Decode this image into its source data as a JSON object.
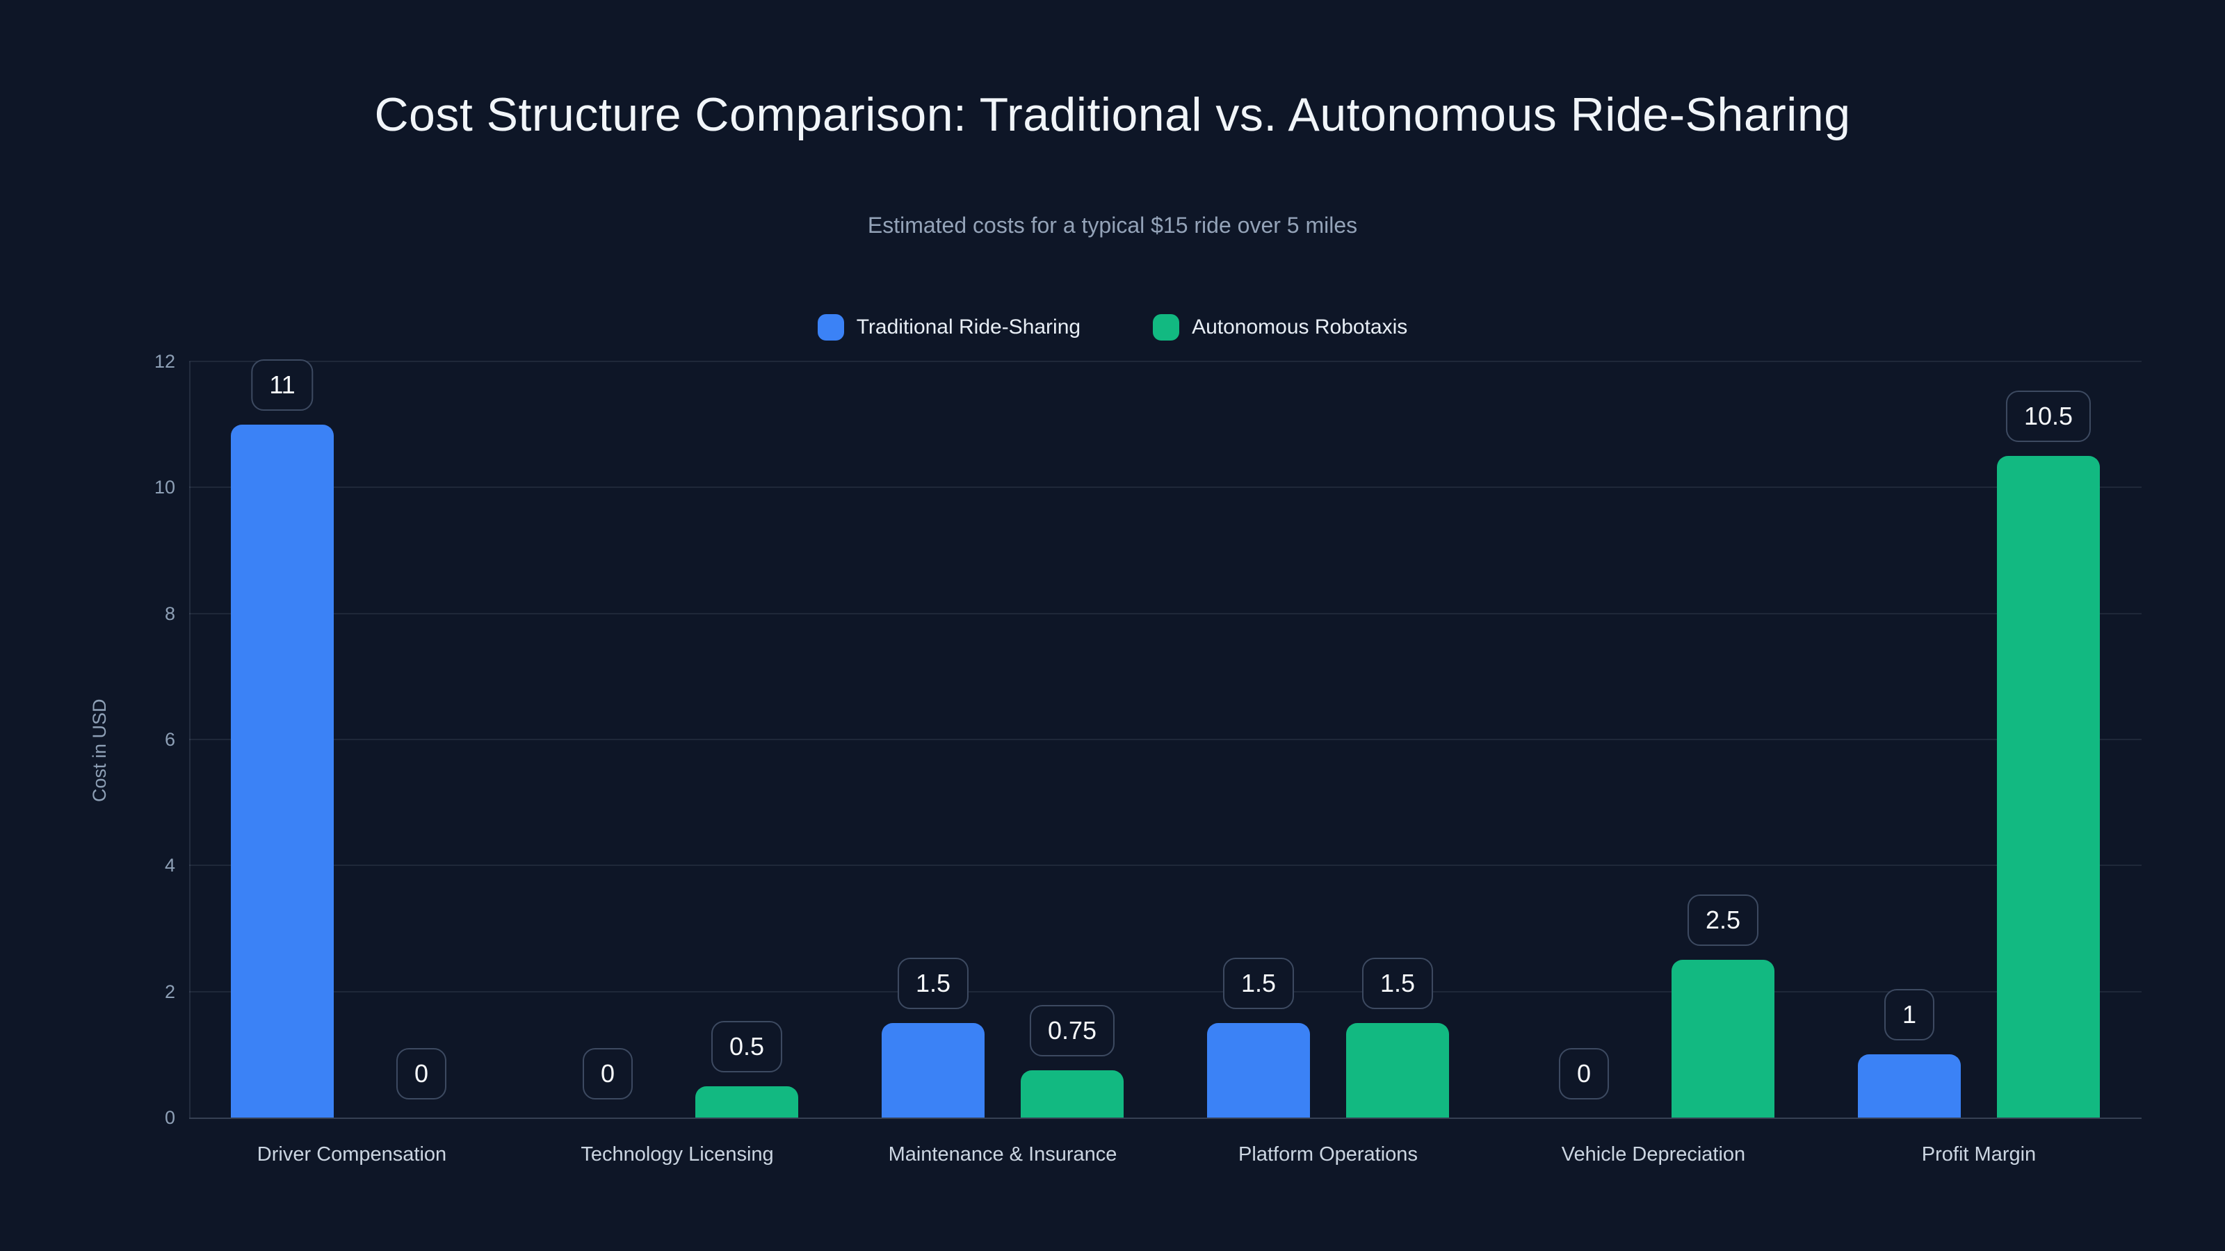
{
  "chart_data": {
    "type": "bar",
    "title": "Cost Structure Comparison: Traditional vs. Autonomous Ride-Sharing",
    "subtitle": "Estimated costs for a typical $15 ride over 5 miles",
    "categories": [
      "Driver Compensation",
      "Technology Licensing",
      "Maintenance & Insurance",
      "Platform Operations",
      "Vehicle Depreciation",
      "Profit Margin"
    ],
    "series": [
      {
        "name": "Traditional Ride-Sharing",
        "color": "#3b82f6",
        "values": [
          11,
          0,
          1.5,
          1.5,
          0,
          1
        ]
      },
      {
        "name": "Autonomous Robotaxis",
        "color": "#12b981",
        "values": [
          0,
          0.5,
          0.75,
          1.5,
          2.5,
          10.5
        ]
      }
    ],
    "xlabel": "",
    "ylabel": "Cost in USD",
    "yticks": [
      0,
      2,
      4,
      6,
      8,
      10,
      12
    ],
    "ylim": [
      0,
      12
    ],
    "grid": true,
    "legend_position": "top",
    "value_labels_shown": true
  },
  "theme": {
    "bg": "#0e1627",
    "title-color": "#f1f5f9",
    "subtitle-color": "#94a3b8",
    "axis-color": "#8ea0b6",
    "category-color": "#cbd5e1",
    "legend-text": "#e8eef5",
    "grid-color": "rgba(148,163,184,0.13)",
    "axis-line-color": "rgba(148,163,184,0.16)",
    "baseline-color": "rgba(148,163,184,0.30)",
    "chip-border": "#3d4a61",
    "chip-text": "#f8fafc"
  }
}
